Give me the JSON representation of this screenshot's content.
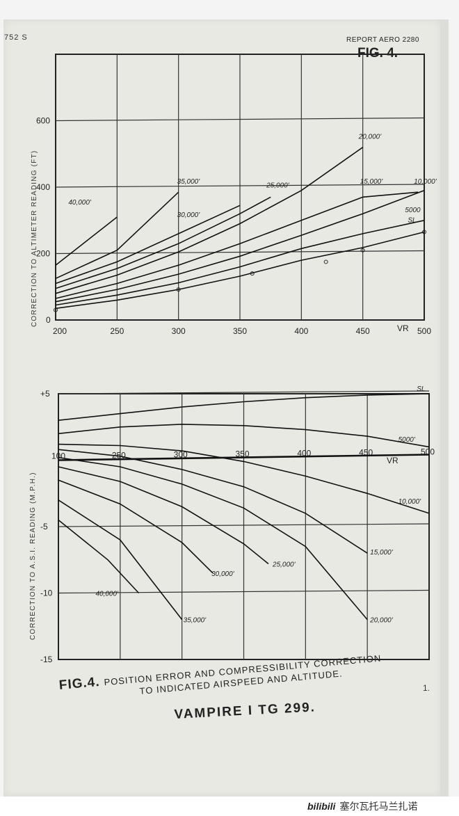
{
  "document": {
    "ref_left": "752 S",
    "report": "REPORT AERO 2280",
    "fig_label": "FIG. 4.",
    "caption_fig": "FIG.4.",
    "caption_line1": "POSITION ERROR AND COMPRESSIBILITY CORRECTION",
    "caption_line2": "TO INDICATED AIRSPEED AND ALTITUDE.",
    "caption_title": "VAMPIRE I TG 299.",
    "stray_mark": "1.",
    "watermark_logo": "bilibili",
    "watermark_text": "塞尔瓦托马兰扎诺"
  },
  "chart_data": [
    {
      "type": "line",
      "ylabel": "CORRECTION TO ALTIMETER READING (FT)",
      "xlabel": "VR",
      "x_tick_labels": [
        "200",
        "250",
        "300",
        "350",
        "400",
        "450",
        "500"
      ],
      "y_tick_labels": [
        "0",
        "200",
        "400",
        "600"
      ],
      "xlim": [
        200,
        500
      ],
      "ylim": [
        0,
        800
      ],
      "grid": true,
      "series": [
        {
          "name": "SL",
          "x": [
            200,
            250,
            300,
            350,
            400,
            450,
            500
          ],
          "y": [
            35,
            60,
            92,
            132,
            180,
            218,
            265
          ]
        },
        {
          "name": "5000'",
          "x": [
            200,
            250,
            300,
            350,
            400,
            450,
            500
          ],
          "y": [
            45,
            75,
            112,
            160,
            215,
            260,
            300
          ]
        },
        {
          "name": "10,000'",
          "x": [
            200,
            250,
            300,
            350,
            400,
            450,
            500
          ],
          "y": [
            55,
            92,
            138,
            192,
            255,
            320,
            390
          ]
        },
        {
          "name": "15,000'",
          "x": [
            200,
            250,
            300,
            350,
            400,
            450,
            495
          ],
          "y": [
            65,
            110,
            165,
            230,
            300,
            370,
            385
          ]
        },
        {
          "name": "20,000'",
          "x": [
            200,
            250,
            300,
            350,
            400,
            450
          ],
          "y": [
            80,
            135,
            205,
            290,
            390,
            520
          ]
        },
        {
          "name": "25,000'",
          "x": [
            200,
            250,
            300,
            350,
            375
          ],
          "y": [
            95,
            155,
            230,
            320,
            370
          ]
        },
        {
          "name": "30,000'",
          "x": [
            200,
            250,
            300,
            350
          ],
          "y": [
            110,
            175,
            260,
            345
          ]
        },
        {
          "name": "35,000'",
          "x": [
            200,
            250,
            300
          ],
          "y": [
            125,
            210,
            385
          ]
        },
        {
          "name": "40,000'",
          "x": [
            200,
            250
          ],
          "y": [
            165,
            310
          ]
        }
      ],
      "points": [
        {
          "x": 200,
          "y": 30
        },
        {
          "x": 300,
          "y": 92
        },
        {
          "x": 360,
          "y": 140
        },
        {
          "x": 420,
          "y": 175
        },
        {
          "x": 450,
          "y": 210
        },
        {
          "x": 500,
          "y": 265
        }
      ],
      "annotations": [
        "40,000'",
        "35,000'",
        "30,000'",
        "25,000'",
        "20,000'",
        "15,000'",
        "10,000'",
        "5000",
        "SL"
      ]
    },
    {
      "type": "line",
      "ylabel": "CORRECTION TO A.S.I. READING (M.P.H.)",
      "xlabel": "VR",
      "x_tick_labels": [
        "100",
        "250",
        "300",
        "350",
        "400",
        "450",
        "500"
      ],
      "y_tick_labels": [
        "+5",
        "0",
        "-5",
        "-10",
        "-15"
      ],
      "xlim": [
        200,
        500
      ],
      "ylim": [
        -15,
        5
      ],
      "grid": true,
      "series": [
        {
          "name": "SL",
          "x": [
            200,
            250,
            300,
            350,
            400,
            450,
            500
          ],
          "y": [
            3.0,
            3.5,
            4.0,
            4.4,
            4.7,
            4.9,
            5.0
          ]
        },
        {
          "name": "5000'",
          "x": [
            200,
            250,
            300,
            350,
            400,
            450,
            500
          ],
          "y": [
            2.0,
            2.5,
            2.7,
            2.6,
            2.3,
            1.8,
            1.0
          ]
        },
        {
          "name": "10,000'",
          "x": [
            200,
            250,
            300,
            350,
            400,
            450,
            500
          ],
          "y": [
            1.2,
            1.1,
            0.7,
            -0.1,
            -1.2,
            -2.5,
            -4.0
          ]
        },
        {
          "name": "15,000'",
          "x": [
            200,
            250,
            300,
            350,
            400,
            450
          ],
          "y": [
            0.8,
            0.3,
            -0.7,
            -2.0,
            -4.0,
            -7.0
          ]
        },
        {
          "name": "20,000'",
          "x": [
            200,
            250,
            300,
            350,
            400,
            450
          ],
          "y": [
            0.2,
            -0.5,
            -1.8,
            -3.6,
            -6.5,
            -12.0
          ]
        },
        {
          "name": "25,000'",
          "x": [
            200,
            250,
            300,
            350,
            370
          ],
          "y": [
            -0.5,
            -1.6,
            -3.5,
            -6.3,
            -7.8
          ]
        },
        {
          "name": "30,000'",
          "x": [
            200,
            250,
            300,
            325
          ],
          "y": [
            -1.5,
            -3.3,
            -6.2,
            -8.5
          ]
        },
        {
          "name": "35,000'",
          "x": [
            200,
            250,
            300
          ],
          "y": [
            -3.0,
            -6.0,
            -12.0
          ]
        },
        {
          "name": "40,000'",
          "x": [
            200,
            240,
            265
          ],
          "y": [
            -4.5,
            -7.5,
            -10.0
          ]
        }
      ],
      "annotations": [
        "SL",
        "5000'",
        "10,000'",
        "15,000'",
        "20,000'",
        "25,000'",
        "30,000'",
        "35,000'",
        "40,000'"
      ]
    }
  ]
}
